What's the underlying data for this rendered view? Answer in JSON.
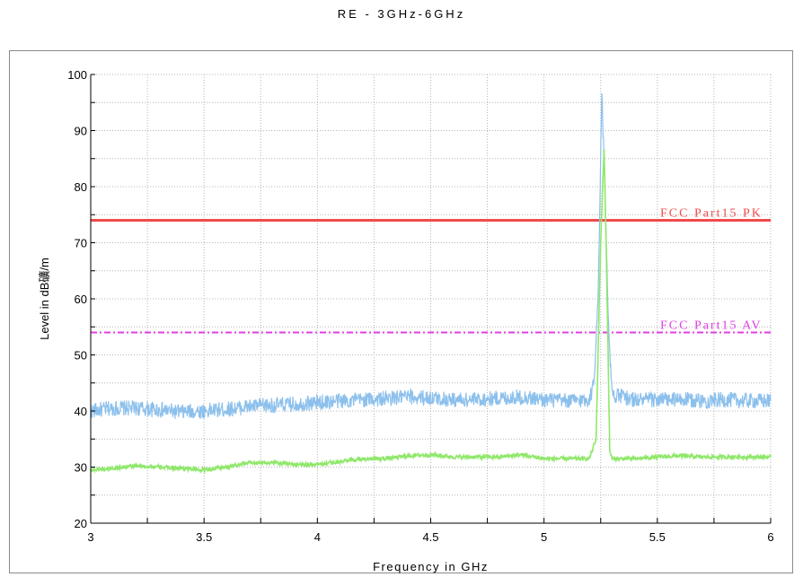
{
  "chart_data": {
    "type": "line",
    "title": "RE - 3GHz-6GHz",
    "xlabel": "Frequency in GHz",
    "ylabel": "Level in dB礦/m",
    "xlim": [
      3,
      6
    ],
    "ylim": [
      20,
      100
    ],
    "x_ticks": [
      "3",
      "3.5",
      "4",
      "4.5",
      "5",
      "5.5",
      "6"
    ],
    "y_ticks": [
      "20",
      "30",
      "40",
      "50",
      "60",
      "70",
      "80",
      "90",
      "100"
    ],
    "grid": true,
    "limits": [
      {
        "name": "FCC Part15 PK",
        "value": 74,
        "color": "#f04a4a",
        "style": "solid"
      },
      {
        "name": "FCC Part15 AV",
        "value": 54,
        "color": "#e23de2",
        "style": "dashdot"
      }
    ],
    "series": [
      {
        "color": "#8cc0ec",
        "points": [
          [
            3.0,
            40
          ],
          [
            3.1,
            40.5
          ],
          [
            3.2,
            40.5
          ],
          [
            3.3,
            40.2
          ],
          [
            3.4,
            39.8
          ],
          [
            3.5,
            40
          ],
          [
            3.6,
            40.3
          ],
          [
            3.7,
            40.8
          ],
          [
            3.8,
            41
          ],
          [
            3.9,
            41.2
          ],
          [
            4.0,
            41.5
          ],
          [
            4.1,
            41.8
          ],
          [
            4.2,
            42
          ],
          [
            4.3,
            42.2
          ],
          [
            4.4,
            42.5
          ],
          [
            4.5,
            42.3
          ],
          [
            4.6,
            42
          ],
          [
            4.7,
            42
          ],
          [
            4.8,
            42.3
          ],
          [
            4.9,
            42.5
          ],
          [
            5.0,
            42
          ],
          [
            5.1,
            41.8
          ],
          [
            5.2,
            42
          ],
          [
            5.22,
            45
          ],
          [
            5.24,
            62
          ],
          [
            5.255,
            97
          ],
          [
            5.27,
            78
          ],
          [
            5.285,
            55
          ],
          [
            5.3,
            43
          ],
          [
            5.4,
            42
          ],
          [
            5.5,
            42
          ],
          [
            5.6,
            42
          ],
          [
            5.7,
            41.8
          ],
          [
            5.8,
            42
          ],
          [
            5.9,
            41.8
          ],
          [
            6.0,
            41.8
          ]
        ]
      },
      {
        "color": "#8fe86a",
        "points": [
          [
            3.0,
            29.5
          ],
          [
            3.1,
            29.8
          ],
          [
            3.2,
            30.2
          ],
          [
            3.3,
            30
          ],
          [
            3.4,
            29.8
          ],
          [
            3.5,
            29.5
          ],
          [
            3.6,
            30
          ],
          [
            3.7,
            30.8
          ],
          [
            3.8,
            30.8
          ],
          [
            3.9,
            30.5
          ],
          [
            4.0,
            30.5
          ],
          [
            4.1,
            31
          ],
          [
            4.2,
            31.5
          ],
          [
            4.3,
            31.5
          ],
          [
            4.4,
            32
          ],
          [
            4.5,
            32.2
          ],
          [
            4.6,
            31.8
          ],
          [
            4.7,
            31.8
          ],
          [
            4.8,
            31.8
          ],
          [
            4.9,
            32.2
          ],
          [
            5.0,
            31.5
          ],
          [
            5.1,
            31.5
          ],
          [
            5.2,
            31.5
          ],
          [
            5.23,
            35
          ],
          [
            5.25,
            70
          ],
          [
            5.265,
            87
          ],
          [
            5.275,
            68
          ],
          [
            5.29,
            33
          ],
          [
            5.3,
            31.5
          ],
          [
            5.4,
            31.5
          ],
          [
            5.5,
            31.8
          ],
          [
            5.6,
            32
          ],
          [
            5.7,
            31.8
          ],
          [
            5.8,
            31.8
          ],
          [
            5.9,
            31.8
          ],
          [
            6.0,
            31.8
          ]
        ]
      }
    ]
  }
}
